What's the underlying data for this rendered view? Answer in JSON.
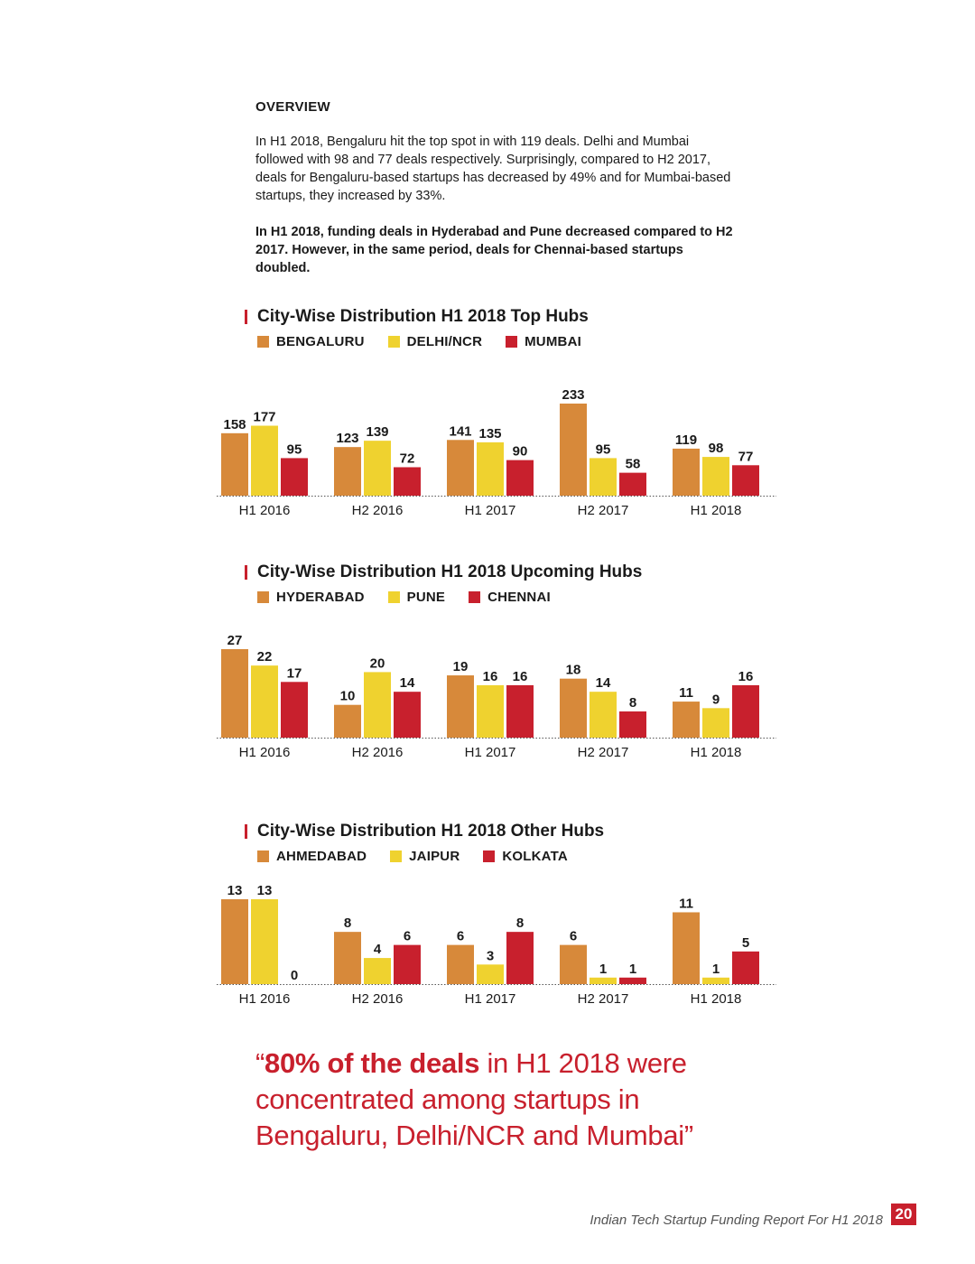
{
  "overview": {
    "heading": "OVERVIEW",
    "p1": "In H1 2018, Bengaluru hit the top spot in with 119 deals. Delhi and Mumbai followed with 98 and 77 deals respectively. Surprisingly, compared to H2 2017, deals for Bengaluru-based startups has decreased by 49% and for Mumbai-based startups, they increased by 33%.",
    "p2": "In H1 2018, funding deals in Hyderabad and Pune decreased compared to H2 2017. However, in the same period, deals for Chennai-based startups doubled."
  },
  "chart_data": [
    {
      "type": "bar",
      "title": "City-Wise Distribution H1 2018 Top Hubs",
      "categories": [
        "H1 2016",
        "H2 2016",
        "H1 2017",
        "H2 2017",
        "H1 2018"
      ],
      "series": [
        {
          "name": "BENGALURU",
          "color": "#d7893a",
          "values": [
            158,
            123,
            141,
            233,
            119
          ]
        },
        {
          "name": "DELHI/NCR",
          "color": "#efd22f",
          "values": [
            177,
            139,
            135,
            95,
            98
          ]
        },
        {
          "name": "MUMBAI",
          "color": "#c8202d",
          "values": [
            95,
            72,
            90,
            58,
            77
          ]
        }
      ],
      "legend": "top-left",
      "grid": false
    },
    {
      "type": "bar",
      "title": "City-Wise Distribution H1 2018 Upcoming Hubs",
      "categories": [
        "H1 2016",
        "H2 2016",
        "H1 2017",
        "H2 2017",
        "H1 2018"
      ],
      "series": [
        {
          "name": "HYDERABAD",
          "color": "#d7893a",
          "values": [
            27,
            10,
            19,
            18,
            11
          ]
        },
        {
          "name": "PUNE",
          "color": "#efd22f",
          "values": [
            22,
            20,
            16,
            14,
            9
          ]
        },
        {
          "name": "CHENNAI",
          "color": "#c8202d",
          "values": [
            17,
            14,
            16,
            8,
            16
          ]
        }
      ],
      "legend": "top-left",
      "grid": false
    },
    {
      "type": "bar",
      "title": "City-Wise Distribution H1 2018 Other Hubs",
      "categories": [
        "H1 2016",
        "H2 2016",
        "H1 2017",
        "H2 2017",
        "H1 2018"
      ],
      "series": [
        {
          "name": "AHMEDABAD",
          "color": "#d7893a",
          "values": [
            13,
            8,
            6,
            6,
            11
          ]
        },
        {
          "name": "JAIPUR",
          "color": "#efd22f",
          "values": [
            13,
            4,
            3,
            1,
            1
          ]
        },
        {
          "name": "KOLKATA",
          "color": "#c8202d",
          "values": [
            0,
            6,
            8,
            1,
            5
          ]
        }
      ],
      "legend": "top-left",
      "grid": false
    }
  ],
  "quote": {
    "open": "“",
    "highlight": "80% of the deals",
    "rest": " in H1 2018 were concentrated among startups in Bengaluru, Delhi/NCR and Mumbai”"
  },
  "footer": {
    "text": "Indian Tech Startup Funding Report For H1 2018",
    "page": "20"
  }
}
